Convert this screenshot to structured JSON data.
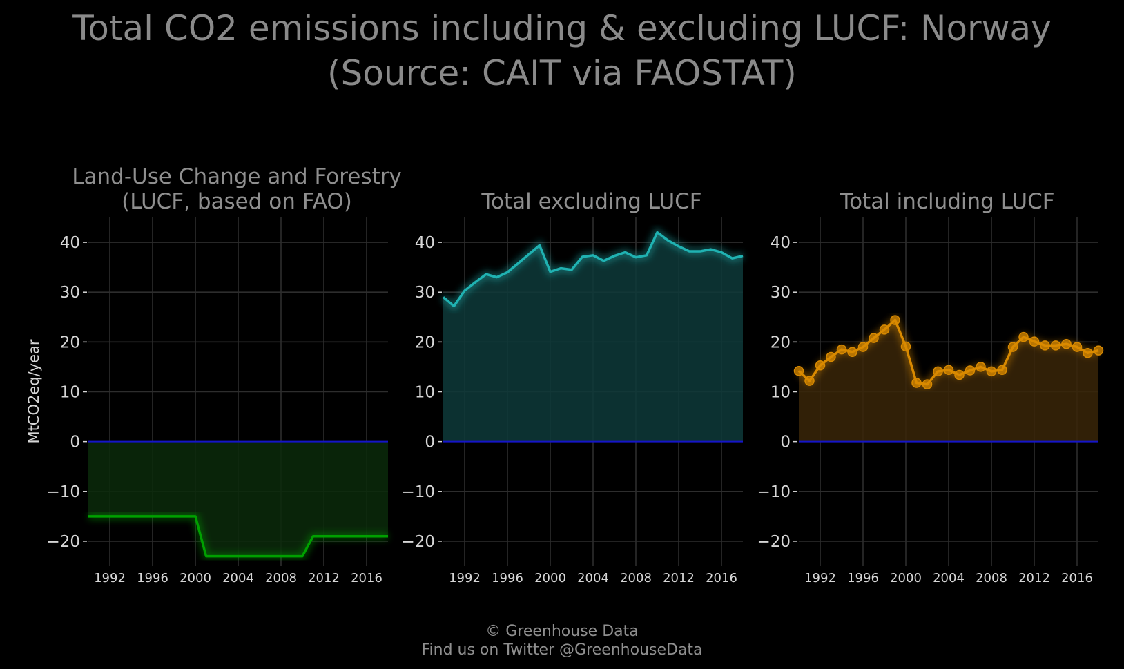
{
  "title_line1": "Total CO2 emissions including & excluding LUCF: Norway",
  "title_line2": "(Source: CAIT via FAOSTAT)",
  "credit_line1": "© Greenhouse Data",
  "credit_line2": "Find us on Twitter @GreenhouseData",
  "chart_data": [
    {
      "type": "area",
      "title": "Land-Use Change and Forestry\n(LUCF, based on FAO)",
      "ylabel": "MtCO2eq/year",
      "color": "#00a000",
      "fill": "#0a2a0a",
      "markers": false,
      "xlim": [
        1990,
        2018
      ],
      "ylim": [
        -25,
        45
      ],
      "yticks": [
        40,
        30,
        20,
        10,
        0,
        -10,
        -20
      ],
      "ytick_labels": [
        "40",
        "30",
        "20",
        "10",
        "0",
        "−10",
        "−20"
      ],
      "xticks": [
        1992,
        1996,
        2000,
        2004,
        2008,
        2012,
        2016
      ],
      "x": [
        1990,
        1991,
        1992,
        1993,
        1994,
        1995,
        1996,
        1997,
        1998,
        1999,
        2000,
        2001,
        2002,
        2003,
        2004,
        2005,
        2006,
        2007,
        2008,
        2009,
        2010,
        2011,
        2012,
        2013,
        2014,
        2015,
        2016,
        2017,
        2018
      ],
      "values": [
        -15,
        -15,
        -15,
        -15,
        -15,
        -15,
        -15,
        -15,
        -15,
        -15,
        -15,
        -23,
        -23,
        -23,
        -23,
        -23,
        -23,
        -23,
        -23,
        -23,
        -23,
        -19,
        -19,
        -19,
        -19,
        -19,
        -19,
        -19,
        -19
      ],
      "grid": true,
      "zero_line_color": "#1515c8"
    },
    {
      "type": "area",
      "title": "Total excluding LUCF",
      "ylabel": "",
      "color": "#20b2b2",
      "fill": "#0e3a3a",
      "markers": false,
      "xlim": [
        1990,
        2018
      ],
      "ylim": [
        -25,
        45
      ],
      "yticks": [
        40,
        30,
        20,
        10,
        0,
        -10,
        -20
      ],
      "ytick_labels": [
        "40",
        "30",
        "20",
        "10",
        "0",
        "−10",
        "−20"
      ],
      "xticks": [
        1992,
        1996,
        2000,
        2004,
        2008,
        2012,
        2016
      ],
      "x": [
        1990,
        1991,
        1992,
        1993,
        1994,
        1995,
        1996,
        1997,
        1998,
        1999,
        2000,
        2001,
        2002,
        2003,
        2004,
        2005,
        2006,
        2007,
        2008,
        2009,
        2010,
        2011,
        2012,
        2013,
        2014,
        2015,
        2016,
        2017,
        2018
      ],
      "values": [
        29,
        27.2,
        30.3,
        32,
        33.6,
        33,
        34,
        35.8,
        37.6,
        39.4,
        34.1,
        34.8,
        34.5,
        37.1,
        37.4,
        36.3,
        37.3,
        38,
        37,
        37.4,
        42,
        40.4,
        39.2,
        38.2,
        38.2,
        38.6,
        38,
        36.8,
        37.3
      ],
      "grid": true,
      "zero_line_color": "#1515c8"
    },
    {
      "type": "area",
      "title": "Total including LUCF",
      "ylabel": "",
      "color": "#d98a00",
      "fill": "#3a2608",
      "markers": true,
      "xlim": [
        1990,
        2018
      ],
      "ylim": [
        -25,
        45
      ],
      "yticks": [
        40,
        30,
        20,
        10,
        0,
        -10,
        -20
      ],
      "ytick_labels": [
        "40",
        "30",
        "20",
        "10",
        "0",
        "−10",
        "−20"
      ],
      "xticks": [
        1992,
        1996,
        2000,
        2004,
        2008,
        2012,
        2016
      ],
      "x": [
        1990,
        1991,
        1992,
        1993,
        1994,
        1995,
        1996,
        1997,
        1998,
        1999,
        2000,
        2001,
        2002,
        2003,
        2004,
        2005,
        2006,
        2007,
        2008,
        2009,
        2010,
        2011,
        2012,
        2013,
        2014,
        2015,
        2016,
        2017,
        2018
      ],
      "values": [
        14.2,
        12.2,
        15.3,
        17,
        18.5,
        18,
        19,
        20.8,
        22.5,
        24.4,
        19.1,
        11.8,
        11.5,
        14.1,
        14.4,
        13.4,
        14.3,
        15,
        14.1,
        14.4,
        19,
        21,
        20.1,
        19.3,
        19.3,
        19.6,
        19,
        17.8,
        18.3
      ],
      "grid": true,
      "zero_line_color": "#1515c8"
    }
  ]
}
